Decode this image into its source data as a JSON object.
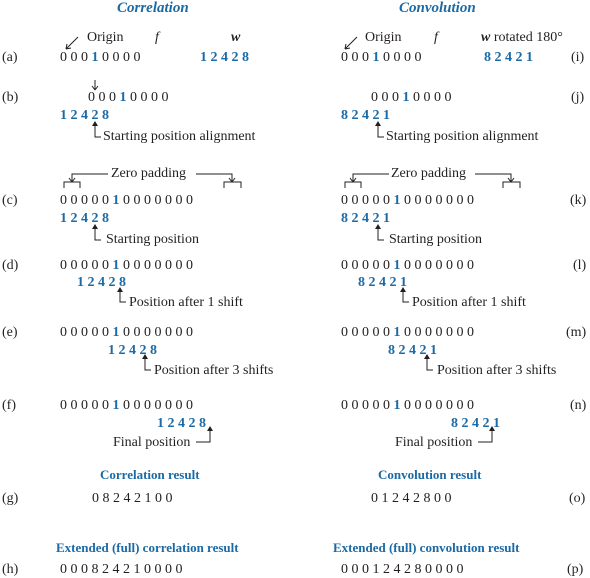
{
  "left": {
    "heading": "Correlation",
    "origin": "Origin",
    "f": "f",
    "w": "w",
    "row_a": {
      "label": "(a)",
      "f_pre": "0 0 0 ",
      "f_one": "1",
      "f_post": " 0 0 0 0",
      "w": "1 2 4 2 8"
    },
    "row_b": {
      "label": "(b)",
      "f_pre": "0 0 0 ",
      "f_one": "1",
      "f_post": " 0 0 0 0",
      "w": "1 2 4 2 8",
      "note": "Starting position alignment"
    },
    "zero_padding": "Zero padding",
    "row_c": {
      "label": "(c)",
      "f_pre": "0 0 0 0 0 ",
      "f_one": "1",
      "f_post": " 0 0 0 0 0 0 0",
      "w": "1 2 4 2 8",
      "note": "Starting position"
    },
    "row_d": {
      "label": "(d)",
      "f_pre": "0 0 0 0 0 ",
      "f_one": "1",
      "f_post": " 0 0 0 0 0 0 0",
      "w": "1 2 4 2 8",
      "note": "Position after 1 shift"
    },
    "row_e": {
      "label": "(e)",
      "f_pre": "0 0 0 0 0 ",
      "f_one": "1",
      "f_post": " 0 0 0 0 0 0 0",
      "w": "1 2 4 2 8",
      "note": "Position after 3 shifts"
    },
    "row_f": {
      "label": "(f)",
      "f_pre": "0 0 0 0 0 ",
      "f_one": "1",
      "f_post": " 0 0 0 0 0 0 0",
      "w": "1 2 4 2 8",
      "note": "Final position"
    },
    "result_title": "Correlation result",
    "row_g": {
      "label": "(g)",
      "values": "0 8 2 4 2 1 0 0"
    },
    "full_title": "Extended (full) correlation result",
    "row_h": {
      "label": "(h)",
      "values": "0 0 0 8 2 4 2 1 0 0 0 0"
    }
  },
  "right": {
    "heading": "Convolution",
    "origin": "Origin",
    "f": "f",
    "w": "w",
    "w_suffix": " rotated 180°",
    "row_i": {
      "label": "(i)",
      "f_pre": "0 0 0 ",
      "f_one": "1",
      "f_post": " 0 0 0 0",
      "w": "8 2 4 2 1"
    },
    "row_j": {
      "label": "(j)",
      "f_pre": "0 0 0 ",
      "f_one": "1",
      "f_post": " 0 0 0 0",
      "w": "8 2 4 2 1",
      "note": "Starting position alignment"
    },
    "zero_padding": "Zero padding",
    "row_k": {
      "label": "(k)",
      "f_pre": "0 0 0 0 0 ",
      "f_one": "1",
      "f_post": " 0 0 0 0 0 0 0",
      "w": "8 2 4 2 1",
      "note": "Starting position"
    },
    "row_l": {
      "label": "(l)",
      "f_pre": "0 0 0 0 0 ",
      "f_one": "1",
      "f_post": " 0 0 0 0 0 0 0",
      "w": "8 2 4 2 1",
      "note": "Position after 1 shift"
    },
    "row_m": {
      "label": "(m)",
      "f_pre": "0 0 0 0 0 ",
      "f_one": "1",
      "f_post": " 0 0 0 0 0 0 0",
      "w": "8 2 4 2 1",
      "note": "Position after 3 shifts"
    },
    "row_n": {
      "label": "(n)",
      "f_pre": "0 0 0 0 0 ",
      "f_one": "1",
      "f_post": " 0 0 0 0 0 0 0",
      "w": "8 2 4 2 1",
      "note": "Final position"
    },
    "result_title": "Convolution result",
    "row_o": {
      "label": "(o)",
      "values": "0 1 2 4 2 8 0 0"
    },
    "full_title": "Extended (full) convolution result",
    "row_p": {
      "label": "(p)",
      "values": "0 0 0 1 2 4 2 8 0 0 0 0"
    }
  },
  "colors": {
    "blue": "#1b6aa5",
    "black": "#231f20"
  }
}
